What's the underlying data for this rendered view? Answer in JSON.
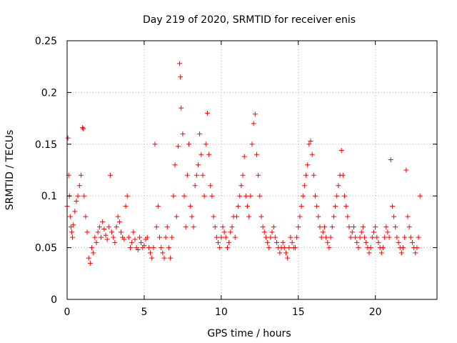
{
  "chart_data": {
    "type": "scatter",
    "title": "Day 219 of 2020, SRMTID for receiver enis",
    "xlabel": "GPS time / hours",
    "ylabel": "SRMTID / TECUs",
    "xlim": [
      0,
      24
    ],
    "ylim": [
      0,
      0.25
    ],
    "xticks": [
      0,
      5,
      10,
      15,
      20
    ],
    "xtick_labels": [
      "0",
      "5",
      "10",
      "15",
      "20"
    ],
    "yticks": [
      0,
      0.05,
      0.1,
      0.15,
      0.2,
      0.25
    ],
    "ytick_labels": [
      "0",
      "0.05",
      "0.1",
      "0.15",
      "0.2",
      "0.25"
    ],
    "grid": true,
    "marker": "plus",
    "color": "#ff0000",
    "series": [
      {
        "x": [
          0.0,
          0.05,
          0.1,
          0.15,
          0.2,
          0.25,
          0.3,
          0.35,
          0.4,
          0.5,
          0.6,
          0.7,
          0.8,
          0.9,
          1.0,
          1.05,
          1.1,
          1.2,
          1.3,
          1.4,
          1.5,
          1.6,
          1.7,
          1.8,
          1.9,
          2.0,
          2.1,
          2.2,
          2.3,
          2.4,
          2.5,
          2.6,
          2.7,
          2.8,
          2.9,
          3.0,
          3.1,
          3.2,
          3.3,
          3.4,
          3.5,
          3.6,
          3.7,
          3.8,
          3.9,
          4.0,
          4.1,
          4.2,
          4.3,
          4.4,
          4.5,
          4.6,
          4.7,
          4.8,
          4.9,
          5.0,
          5.1,
          5.2,
          5.3,
          5.4,
          5.5,
          5.6,
          5.7,
          5.8,
          5.9,
          6.0,
          6.1,
          6.2,
          6.3,
          6.4,
          6.5,
          6.6,
          6.7,
          6.8,
          6.9,
          7.0,
          7.1,
          7.2,
          7.3,
          7.35,
          7.4,
          7.5,
          7.6,
          7.7,
          7.8,
          7.9,
          8.0,
          8.1,
          8.2,
          8.3,
          8.4,
          8.5,
          8.6,
          8.7,
          8.8,
          8.9,
          9.0,
          9.1,
          9.2,
          9.3,
          9.4,
          9.5,
          9.6,
          9.7,
          9.8,
          9.9,
          10.0,
          10.1,
          10.2,
          10.3,
          10.4,
          10.5,
          10.6,
          10.7,
          10.8,
          10.9,
          11.0,
          11.1,
          11.2,
          11.3,
          11.4,
          11.5,
          11.6,
          11.7,
          11.8,
          11.9,
          12.0,
          12.1,
          12.2,
          12.3,
          12.4,
          12.5,
          12.6,
          12.7,
          12.8,
          12.9,
          13.0,
          13.1,
          13.2,
          13.3,
          13.4,
          13.5,
          13.6,
          13.7,
          13.8,
          13.9,
          14.0,
          14.1,
          14.2,
          14.3,
          14.4,
          14.5,
          14.6,
          14.7,
          14.8,
          14.9,
          15.0,
          15.1,
          15.2,
          15.3,
          15.4,
          15.5,
          15.6,
          15.7,
          15.8,
          15.9,
          16.0,
          16.1,
          16.2,
          16.3,
          16.4,
          16.5,
          16.6,
          16.7,
          16.8,
          16.9,
          17.0,
          17.1,
          17.2,
          17.3,
          17.4,
          17.5,
          17.6,
          17.7,
          17.8,
          17.9,
          18.0,
          18.1,
          18.2,
          18.3,
          18.4,
          18.5,
          18.6,
          18.7,
          18.8,
          18.9,
          19.0,
          19.1,
          19.2,
          19.3,
          19.4,
          19.5,
          19.6,
          19.7,
          19.8,
          19.9,
          20.0,
          20.1,
          20.2,
          20.3,
          20.4,
          20.5,
          20.6,
          20.7,
          20.8,
          20.9,
          21.0,
          21.1,
          21.2,
          21.3,
          21.4,
          21.5,
          21.6,
          21.7,
          21.8,
          21.9,
          22.0,
          22.1,
          22.2,
          22.3,
          22.4,
          22.5,
          22.6,
          22.7,
          22.8,
          22.9
        ],
        "y": [
          0.09,
          0.156,
          0.12,
          0.1,
          0.08,
          0.07,
          0.065,
          0.06,
          0.072,
          0.085,
          0.095,
          0.1,
          0.11,
          0.12,
          0.166,
          0.165,
          0.1,
          0.08,
          0.065,
          0.04,
          0.035,
          0.05,
          0.045,
          0.06,
          0.055,
          0.065,
          0.07,
          0.06,
          0.075,
          0.068,
          0.062,
          0.058,
          0.07,
          0.12,
          0.065,
          0.06,
          0.055,
          0.07,
          0.08,
          0.075,
          0.065,
          0.06,
          0.058,
          0.09,
          0.1,
          0.06,
          0.05,
          0.055,
          0.065,
          0.058,
          0.05,
          0.048,
          0.06,
          0.055,
          0.05,
          0.052,
          0.058,
          0.06,
          0.05,
          0.045,
          0.04,
          0.05,
          0.15,
          0.07,
          0.09,
          0.06,
          0.05,
          0.045,
          0.04,
          0.06,
          0.07,
          0.05,
          0.04,
          0.06,
          0.1,
          0.13,
          0.08,
          0.148,
          0.228,
          0.215,
          0.185,
          0.16,
          0.1,
          0.07,
          0.12,
          0.15,
          0.09,
          0.08,
          0.07,
          0.11,
          0.12,
          0.13,
          0.16,
          0.14,
          0.12,
          0.1,
          0.15,
          0.18,
          0.14,
          0.11,
          0.1,
          0.08,
          0.07,
          0.06,
          0.055,
          0.05,
          0.06,
          0.07,
          0.065,
          0.06,
          0.05,
          0.055,
          0.065,
          0.07,
          0.08,
          0.06,
          0.08,
          0.09,
          0.1,
          0.11,
          0.12,
          0.138,
          0.1,
          0.09,
          0.08,
          0.1,
          0.15,
          0.17,
          0.179,
          0.14,
          0.12,
          0.1,
          0.08,
          0.07,
          0.065,
          0.06,
          0.055,
          0.05,
          0.06,
          0.065,
          0.07,
          0.06,
          0.055,
          0.05,
          0.045,
          0.05,
          0.055,
          0.05,
          0.045,
          0.04,
          0.05,
          0.06,
          0.055,
          0.05,
          0.05,
          0.06,
          0.07,
          0.08,
          0.09,
          0.1,
          0.11,
          0.12,
          0.13,
          0.15,
          0.153,
          0.14,
          0.12,
          0.1,
          0.09,
          0.08,
          0.07,
          0.06,
          0.065,
          0.07,
          0.06,
          0.055,
          0.05,
          0.06,
          0.07,
          0.08,
          0.09,
          0.1,
          0.11,
          0.12,
          0.144,
          0.12,
          0.1,
          0.09,
          0.08,
          0.07,
          0.06,
          0.065,
          0.07,
          0.06,
          0.055,
          0.05,
          0.06,
          0.065,
          0.07,
          0.06,
          0.055,
          0.05,
          0.045,
          0.05,
          0.06,
          0.065,
          0.07,
          0.06,
          0.055,
          0.05,
          0.045,
          0.05,
          0.06,
          0.07,
          0.065,
          0.06,
          0.135,
          0.09,
          0.08,
          0.07,
          0.06,
          0.055,
          0.05,
          0.045,
          0.05,
          0.06,
          0.125,
          0.08,
          0.07,
          0.06,
          0.055,
          0.05,
          0.045,
          0.05,
          0.06,
          0.1
        ]
      }
    ]
  }
}
